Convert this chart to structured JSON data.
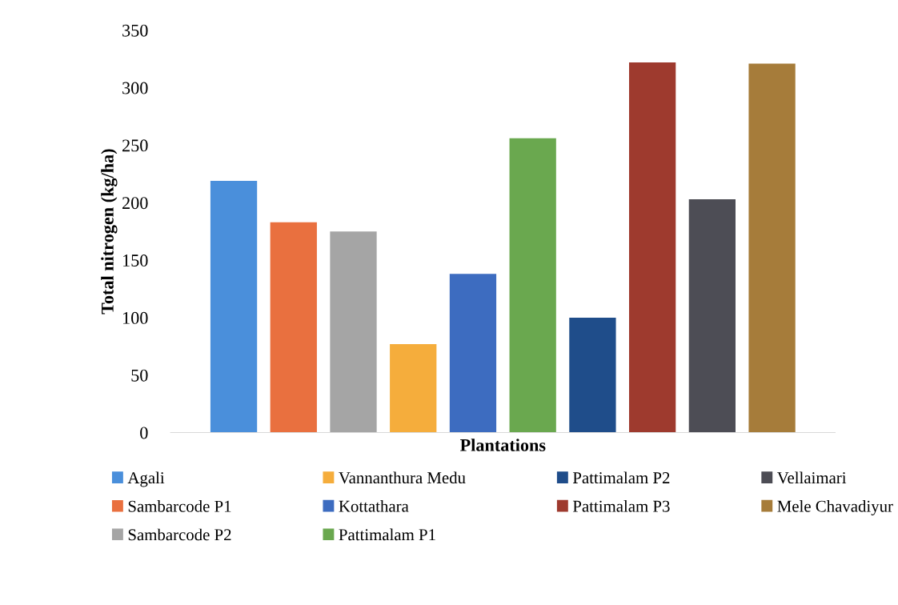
{
  "chart_data": {
    "type": "bar",
    "xlabel": "Plantations",
    "ylabel": "Total nitrogen (kg/ha)",
    "categories": [
      null
    ],
    "series": [
      {
        "name": "Agali",
        "color": "#4a8fdb",
        "values": [
          219
        ]
      },
      {
        "name": "Sambarcode P1",
        "color": "#e9703f",
        "values": [
          183
        ]
      },
      {
        "name": "Sambarcode P2",
        "color": "#a5a5a5",
        "values": [
          175
        ]
      },
      {
        "name": "Vannanthura Medu",
        "color": "#f5ad3c",
        "values": [
          77
        ]
      },
      {
        "name": "Kottathara",
        "color": "#3d6cc0",
        "values": [
          138
        ]
      },
      {
        "name": "Pattimalam P1",
        "color": "#6aa84f",
        "values": [
          256
        ]
      },
      {
        "name": "Pattimalam P2",
        "color": "#1f4d8a",
        "values": [
          100
        ]
      },
      {
        "name": "Pattimalam P3",
        "color": "#9e3a2e",
        "values": [
          322
        ]
      },
      {
        "name": "Vellaimari",
        "color": "#4d4d55",
        "values": [
          203
        ]
      },
      {
        "name": "Mele Chavadiyur",
        "color": "#a67c3a",
        "values": [
          321
        ]
      }
    ],
    "ylim": [
      0,
      350
    ],
    "yticks": [
      0,
      50,
      100,
      150,
      200,
      250,
      300,
      350
    ],
    "grid": false,
    "legend": "bottom"
  }
}
